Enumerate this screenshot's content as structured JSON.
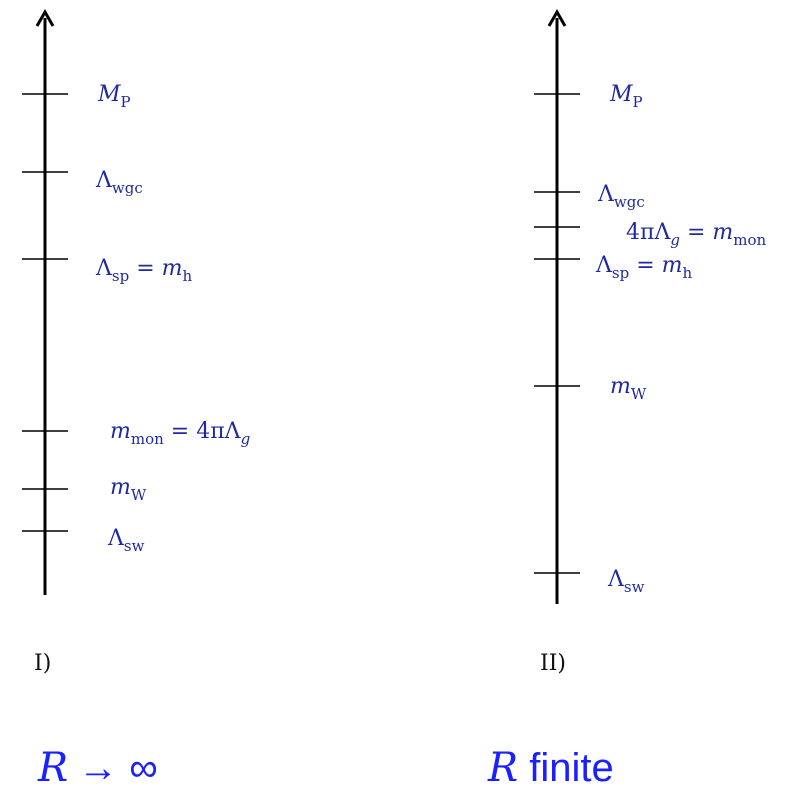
{
  "panel_I": {
    "roman_label": "I)",
    "caption_R": "R",
    "caption_rest": "→ ∞",
    "scales": {
      "planck": {
        "base": "M",
        "sub": "P"
      },
      "wgc": {
        "base": "Λ",
        "sub": "wgc"
      },
      "sp": {
        "base": "Λ",
        "sub": "sp",
        "mid": " = ",
        "base2": "m",
        "sub2": "h"
      },
      "mon": {
        "base": "m",
        "sub": "mon",
        "mid": " = 4πΛ",
        "sub2": "g"
      },
      "w": {
        "base": "m",
        "sub": "W"
      },
      "sw": {
        "base": "Λ",
        "sub": "sw"
      }
    }
  },
  "panel_II": {
    "roman_label": "II)",
    "caption_R": "R",
    "caption_rest": " finite",
    "scales": {
      "planck": {
        "base": "M",
        "sub": "P"
      },
      "wgc": {
        "base": "Λ",
        "sub": "wgc"
      },
      "g": {
        "base": "4πΛ",
        "sub": "g",
        "mid": " = ",
        "base2": "m",
        "sub2": "mon"
      },
      "sp": {
        "base": "Λ",
        "sub": "sp",
        "mid": " = ",
        "base2": "m",
        "sub2": "h"
      },
      "w": {
        "base": "m",
        "sub": "W"
      },
      "sw": {
        "base": "Λ",
        "sub": "sw"
      }
    }
  },
  "colors": {
    "label": "#1f2aa0",
    "caption": "#1a20ff",
    "axis": "#000000"
  }
}
